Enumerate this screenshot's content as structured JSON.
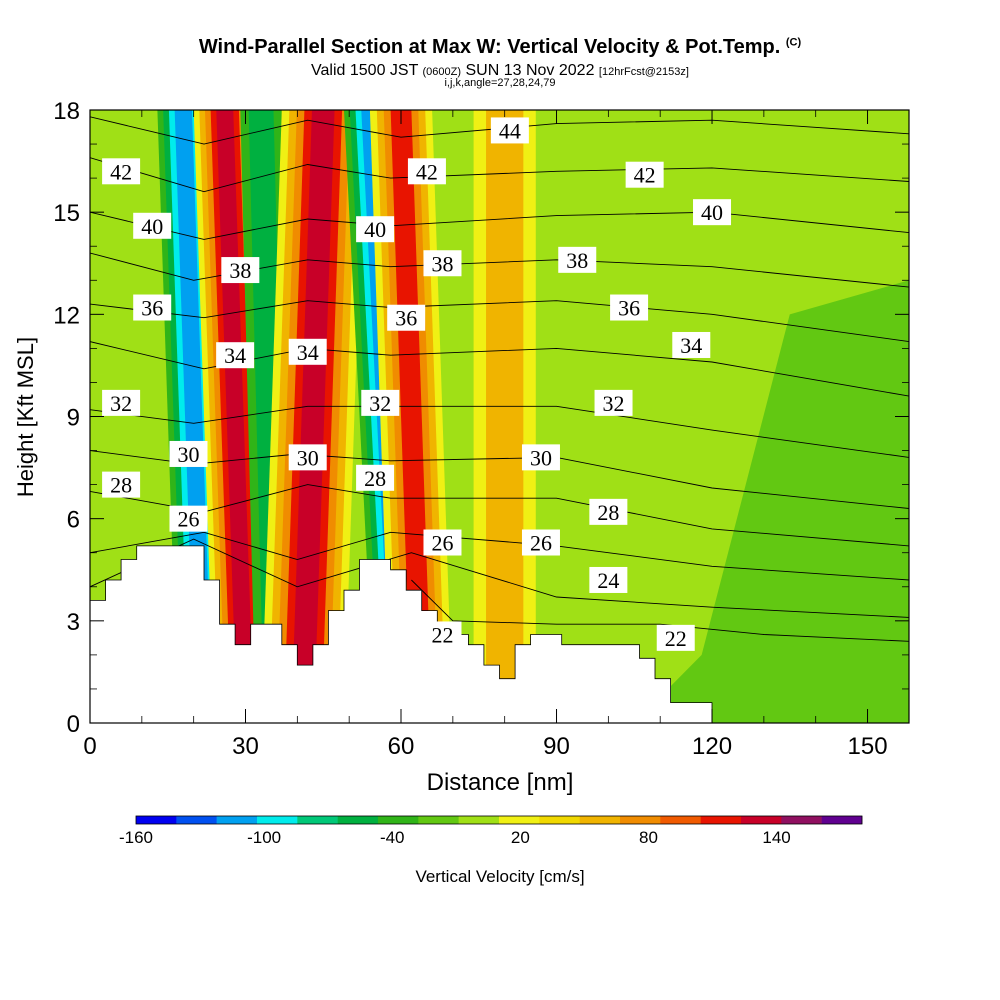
{
  "title": {
    "main": "Wind-Parallel Section at Max W: Vertical Velocity & Pot.Temp.",
    "copyright": "(C)"
  },
  "subtitle": {
    "valid": "Valid 1500 JST",
    "utc": "(0600Z)",
    "date": "SUN 13 Nov 2022",
    "forecast": "[12hrFcst@2153z]",
    "indices": "i,j,k,angle=27,28,24,79"
  },
  "chart_data": {
    "type": "heatmap",
    "xlabel": "Distance [nm]",
    "ylabel": "Height [Kft MSL]",
    "xlim": [
      0,
      158
    ],
    "ylim": [
      0,
      18
    ],
    "x_ticks": [
      "0",
      "30",
      "60",
      "90",
      "120",
      "150"
    ],
    "y_ticks": [
      "0",
      "3",
      "6",
      "9",
      "12",
      "15",
      "18"
    ],
    "colorbar": {
      "label": "Vertical Velocity [cm/s]",
      "min": -160,
      "max": 180,
      "step": 20,
      "tick_labels": [
        "-160",
        "-100",
        "-40",
        "20",
        "80",
        "140"
      ],
      "colors": [
        "#0000f0",
        "#0050f0",
        "#00a0f0",
        "#00ecec",
        "#00c878",
        "#00b040",
        "#30b418",
        "#62c812",
        "#a0e016",
        "#f0f014",
        "#f0d800",
        "#f0b400",
        "#f08c00",
        "#f05a00",
        "#e81400",
        "#c80028",
        "#901060",
        "#600090"
      ]
    },
    "terrain_kft": [
      [
        0,
        3.6
      ],
      [
        3,
        3.6
      ],
      [
        3,
        4.2
      ],
      [
        6,
        4.2
      ],
      [
        6,
        4.8
      ],
      [
        9,
        4.8
      ],
      [
        9,
        5.2
      ],
      [
        22,
        5.2
      ],
      [
        22,
        4.2
      ],
      [
        25,
        4.2
      ],
      [
        25,
        2.9
      ],
      [
        28,
        2.9
      ],
      [
        28,
        2.3
      ],
      [
        31,
        2.3
      ],
      [
        31,
        2.9
      ],
      [
        37,
        2.9
      ],
      [
        37,
        2.3
      ],
      [
        40,
        2.3
      ],
      [
        40,
        1.7
      ],
      [
        43,
        1.7
      ],
      [
        43,
        2.3
      ],
      [
        46,
        2.3
      ],
      [
        46,
        3.3
      ],
      [
        49,
        3.3
      ],
      [
        49,
        3.9
      ],
      [
        52,
        3.9
      ],
      [
        52,
        4.8
      ],
      [
        58,
        4.8
      ],
      [
        58,
        4.5
      ],
      [
        61,
        4.5
      ],
      [
        61,
        3.9
      ],
      [
        64,
        3.9
      ],
      [
        64,
        3.3
      ],
      [
        67,
        3.3
      ],
      [
        67,
        2.9
      ],
      [
        70,
        2.9
      ],
      [
        70,
        2.6
      ],
      [
        73,
        2.6
      ],
      [
        73,
        2.3
      ],
      [
        76,
        2.3
      ],
      [
        76,
        1.7
      ],
      [
        79,
        1.7
      ],
      [
        79,
        1.3
      ],
      [
        82,
        1.3
      ],
      [
        82,
        2.3
      ],
      [
        85,
        2.3
      ],
      [
        85,
        2.6
      ],
      [
        91,
        2.6
      ],
      [
        91,
        2.3
      ],
      [
        106,
        2.3
      ],
      [
        106,
        1.9
      ],
      [
        109,
        1.9
      ],
      [
        109,
        1.3
      ],
      [
        112,
        1.3
      ],
      [
        112,
        0.6
      ],
      [
        120,
        0.6
      ],
      [
        120,
        0
      ],
      [
        158,
        0
      ]
    ],
    "updraft_bands": [
      {
        "name": "band-downdraft-1",
        "w_cm_s": -140,
        "x_bottom": 22,
        "x_top": 18,
        "width_nm": 5
      },
      {
        "name": "band-updraft-1",
        "w_cm_s": 150,
        "x_bottom": 30,
        "x_top": 26,
        "width_nm": 6
      },
      {
        "name": "band-downdraft-2",
        "w_cm_s": -60,
        "x_bottom": 36,
        "x_top": 33,
        "width_nm": 4
      },
      {
        "name": "band-updraft-2",
        "w_cm_s": 150,
        "x_bottom": 41,
        "x_top": 45,
        "width_nm": 8
      },
      {
        "name": "band-downdraft-3",
        "w_cm_s": -140,
        "x_bottom": 60,
        "x_top": 54,
        "width_nm": 5
      },
      {
        "name": "band-updraft-3",
        "w_cm_s": 140,
        "x_bottom": 64,
        "x_top": 60,
        "width_nm": 6
      },
      {
        "name": "band-updraft-4",
        "w_cm_s": 60,
        "x_bottom": 80,
        "x_top": 80,
        "width_nm": 6
      }
    ],
    "isentropes": [
      {
        "label": "22",
        "label_pos": [
          68,
          2.6
        ],
        "points": [
          [
            62,
            4.2
          ],
          [
            70,
            3.0
          ],
          [
            90,
            2.9
          ],
          [
            110,
            2.9
          ],
          [
            130,
            2.6
          ],
          [
            158,
            2.4
          ]
        ]
      },
      {
        "label": "22",
        "label_pos": [
          113,
          2.5
        ],
        "points": []
      },
      {
        "label": "24",
        "label_pos": [
          100,
          4.2
        ],
        "points": [
          [
            0,
            4.0
          ],
          [
            20,
            5.4
          ],
          [
            40,
            4.0
          ],
          [
            62,
            5.0
          ],
          [
            90,
            3.7
          ],
          [
            120,
            3.4
          ],
          [
            158,
            3.1
          ]
        ]
      },
      {
        "label": "26",
        "label_pos": [
          19,
          6.0
        ],
        "points": [
          [
            0,
            5.0
          ],
          [
            22,
            5.6
          ],
          [
            40,
            4.8
          ],
          [
            58,
            5.6
          ],
          [
            90,
            5.2
          ],
          [
            120,
            4.6
          ],
          [
            158,
            4.2
          ]
        ]
      },
      {
        "label": "26",
        "label_pos": [
          68,
          5.3
        ],
        "points": []
      },
      {
        "label": "26",
        "label_pos": [
          87,
          5.3
        ],
        "points": []
      },
      {
        "label": "28",
        "label_pos": [
          6,
          7.0
        ],
        "points": [
          [
            0,
            6.8
          ],
          [
            22,
            6.2
          ],
          [
            42,
            7.0
          ],
          [
            58,
            6.6
          ],
          [
            90,
            6.6
          ],
          [
            120,
            5.7
          ],
          [
            158,
            5.2
          ]
        ]
      },
      {
        "label": "28",
        "label_pos": [
          55,
          7.2
        ],
        "points": []
      },
      {
        "label": "28",
        "label_pos": [
          100,
          6.2
        ],
        "points": []
      },
      {
        "label": "30",
        "label_pos": [
          19,
          7.9
        ],
        "points": [
          [
            0,
            8.0
          ],
          [
            20,
            7.6
          ],
          [
            40,
            7.9
          ],
          [
            58,
            7.7
          ],
          [
            90,
            7.8
          ],
          [
            120,
            6.9
          ],
          [
            158,
            6.3
          ]
        ]
      },
      {
        "label": "30",
        "label_pos": [
          42,
          7.8
        ],
        "points": []
      },
      {
        "label": "30",
        "label_pos": [
          87,
          7.8
        ],
        "points": []
      },
      {
        "label": "32",
        "label_pos": [
          6,
          9.4
        ],
        "points": [
          [
            0,
            9.2
          ],
          [
            20,
            8.8
          ],
          [
            42,
            9.3
          ],
          [
            56,
            9.3
          ],
          [
            90,
            9.3
          ],
          [
            120,
            8.6
          ],
          [
            158,
            7.8
          ]
        ]
      },
      {
        "label": "32",
        "label_pos": [
          56,
          9.4
        ],
        "points": []
      },
      {
        "label": "32",
        "label_pos": [
          101,
          9.4
        ],
        "points": []
      },
      {
        "label": "34",
        "label_pos": [
          28,
          10.8
        ],
        "points": [
          [
            0,
            11.2
          ],
          [
            22,
            10.4
          ],
          [
            42,
            11.0
          ],
          [
            58,
            10.8
          ],
          [
            90,
            11.0
          ],
          [
            120,
            10.6
          ],
          [
            158,
            9.6
          ]
        ]
      },
      {
        "label": "34",
        "label_pos": [
          42,
          10.9
        ],
        "points": []
      },
      {
        "label": "34",
        "label_pos": [
          116,
          11.1
        ],
        "points": []
      },
      {
        "label": "36",
        "label_pos": [
          12,
          12.2
        ],
        "points": [
          [
            0,
            12.3
          ],
          [
            22,
            11.9
          ],
          [
            42,
            12.4
          ],
          [
            58,
            12.2
          ],
          [
            90,
            12.4
          ],
          [
            120,
            12.0
          ],
          [
            158,
            11.2
          ]
        ]
      },
      {
        "label": "36",
        "label_pos": [
          61,
          11.9
        ],
        "points": []
      },
      {
        "label": "36",
        "label_pos": [
          104,
          12.2
        ],
        "points": []
      },
      {
        "label": "38",
        "label_pos": [
          29,
          13.3
        ],
        "points": [
          [
            0,
            13.8
          ],
          [
            20,
            13.0
          ],
          [
            42,
            13.6
          ],
          [
            58,
            13.4
          ],
          [
            90,
            13.6
          ],
          [
            120,
            13.4
          ],
          [
            158,
            12.8
          ]
        ]
      },
      {
        "label": "38",
        "label_pos": [
          68,
          13.5
        ],
        "points": []
      },
      {
        "label": "38",
        "label_pos": [
          94,
          13.6
        ],
        "points": []
      },
      {
        "label": "40",
        "label_pos": [
          12,
          14.6
        ],
        "points": [
          [
            0,
            15.0
          ],
          [
            22,
            14.2
          ],
          [
            42,
            14.8
          ],
          [
            58,
            14.6
          ],
          [
            90,
            14.9
          ],
          [
            120,
            15.0
          ],
          [
            158,
            14.4
          ]
        ]
      },
      {
        "label": "40",
        "label_pos": [
          55,
          14.5
        ],
        "points": []
      },
      {
        "label": "40",
        "label_pos": [
          120,
          15.0
        ],
        "points": []
      },
      {
        "label": "42",
        "label_pos": [
          6,
          16.2
        ],
        "points": [
          [
            0,
            16.6
          ],
          [
            22,
            15.6
          ],
          [
            42,
            16.4
          ],
          [
            58,
            16.0
          ],
          [
            90,
            16.2
          ],
          [
            120,
            16.3
          ],
          [
            158,
            15.9
          ]
        ]
      },
      {
        "label": "42",
        "label_pos": [
          65,
          16.2
        ],
        "points": []
      },
      {
        "label": "42",
        "label_pos": [
          107,
          16.1
        ],
        "points": []
      },
      {
        "label": "44",
        "label_pos": [
          81,
          17.4
        ],
        "points": [
          [
            0,
            17.8
          ],
          [
            22,
            17.0
          ],
          [
            42,
            17.7
          ],
          [
            60,
            17.2
          ],
          [
            90,
            17.6
          ],
          [
            120,
            17.7
          ],
          [
            158,
            17.3
          ]
        ]
      }
    ]
  }
}
